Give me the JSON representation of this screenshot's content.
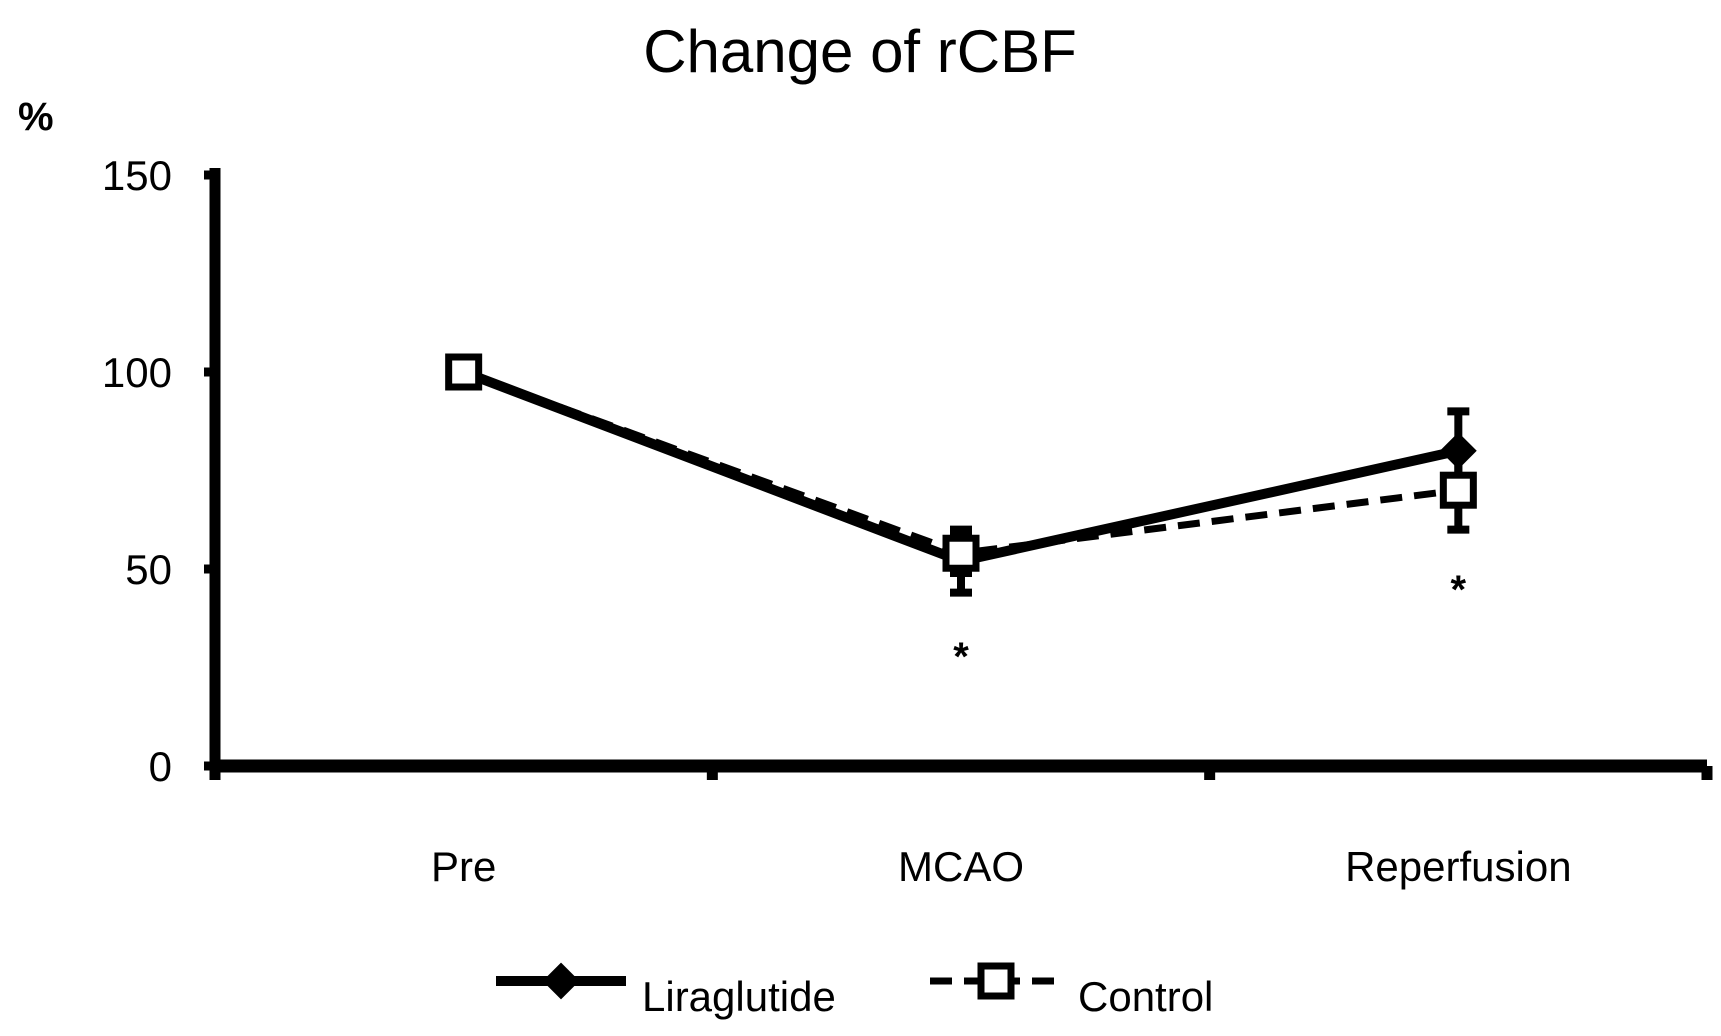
{
  "chart_data": {
    "type": "line",
    "title": "Change of rCBF",
    "ylabel": "%",
    "xlabel": "",
    "ylim": [
      0,
      150
    ],
    "yticks": [
      "0",
      "50",
      "100",
      "150"
    ],
    "categories": [
      "Pre",
      "MCAO",
      "Reperfusion"
    ],
    "series": [
      {
        "name": "Liraglutide",
        "style": "solid",
        "marker": "diamond",
        "values": [
          100,
          52,
          80
        ],
        "errors": [
          0,
          8,
          10
        ]
      },
      {
        "name": "Control",
        "style": "dashed",
        "marker": "open-square",
        "values": [
          100,
          54,
          70
        ],
        "errors": [
          0,
          5,
          10
        ]
      }
    ],
    "annotations": [
      {
        "category": "MCAO",
        "value": 30,
        "text": "*"
      },
      {
        "category": "Reperfusion",
        "value": 47,
        "text": "*"
      }
    ],
    "legend_position": "bottom-center"
  },
  "colors": {
    "line": "#000000",
    "background": "#ffffff"
  }
}
